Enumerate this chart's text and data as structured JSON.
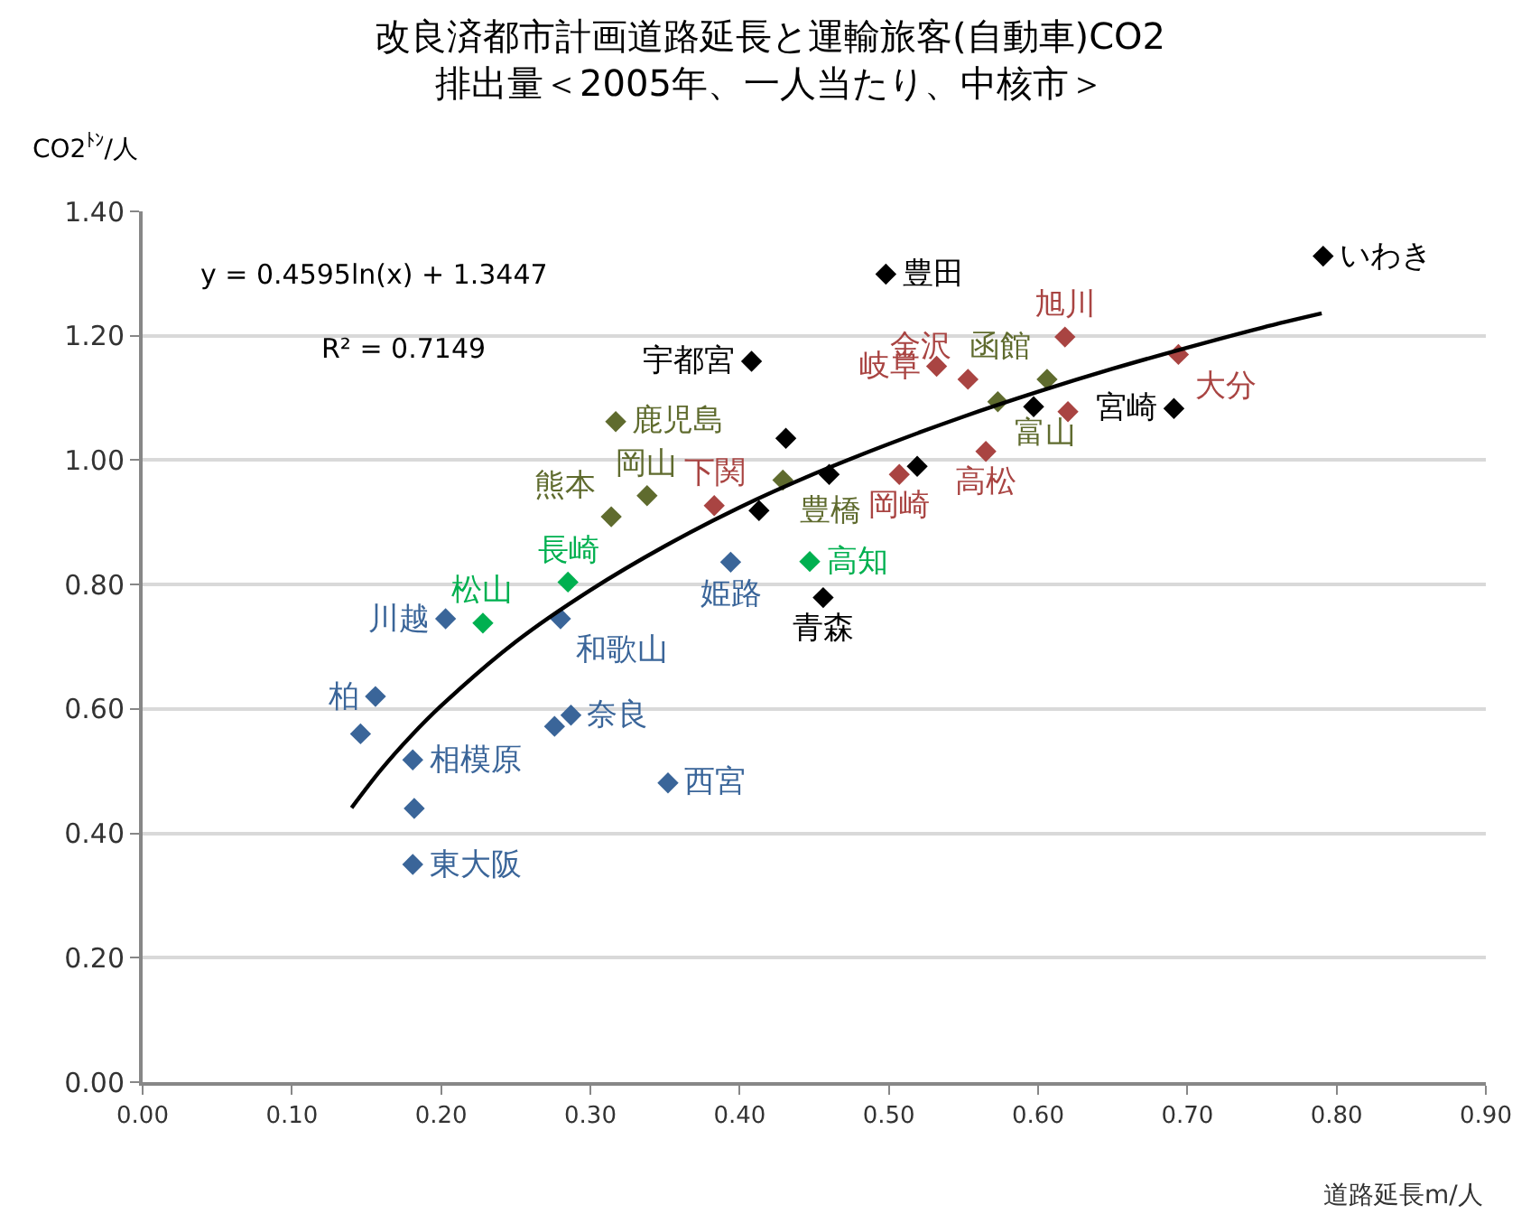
{
  "chart_data": {
    "type": "scatter",
    "title": "改良済都市計画道路延長と運輸旅客(自動車)CO2\n排出量＜2005年、一人当たり、中核市＞",
    "xlabel": "道路延長m/人",
    "ylabel": "CO2$^{ﾄﾝ}$/人",
    "xlim": [
      0,
      0.9
    ],
    "xticks": [
      {
        "value": 0,
        "label": "0.00"
      },
      {
        "value": 0.1,
        "label": "0.10"
      },
      {
        "value": 0.2,
        "label": "0.20"
      },
      {
        "value": 0.3,
        "label": "0.30"
      },
      {
        "value": 0.4,
        "label": "0.40"
      },
      {
        "value": 0.5,
        "label": "0.50"
      },
      {
        "value": 0.6,
        "label": "0.60"
      },
      {
        "value": 0.7,
        "label": "0.70"
      },
      {
        "value": 0.8,
        "label": "0.80"
      },
      {
        "value": 0.9,
        "label": "0.90"
      }
    ],
    "ylim": [
      0,
      1.4
    ],
    "yticks": [
      {
        "value": 0,
        "label": "0.00"
      },
      {
        "value": 0.2,
        "label": "0.20"
      },
      {
        "value": 0.4,
        "label": "0.40"
      },
      {
        "value": 0.6,
        "label": "0.60"
      },
      {
        "value": 0.8,
        "label": "0.80"
      },
      {
        "value": 1.0,
        "label": "1.00"
      },
      {
        "value": 1.2,
        "label": "1.20"
      },
      {
        "value": 1.4,
        "label": "1.40"
      }
    ],
    "grid": "y",
    "marker": "diamond",
    "series": [
      {
        "color": "#3a6599",
        "x": [
          0.156,
          0.146,
          0.181,
          0.182,
          0.181,
          0.203,
          0.28,
          0.287,
          0.276,
          0.352,
          0.394
        ],
        "values": [
          0.62,
          0.56,
          0.518,
          0.44,
          0.35,
          0.745,
          0.745,
          0.59,
          0.572,
          0.481,
          0.836
        ]
      },
      {
        "color": "#00b050",
        "x": [
          0.285,
          0.228,
          0.447
        ],
        "values": [
          0.804,
          0.738,
          0.837
        ]
      },
      {
        "color": "#5f6b2e",
        "x": [
          0.317,
          0.338,
          0.314,
          0.429,
          0.573,
          0.606
        ],
        "values": [
          1.062,
          0.943,
          0.909,
          0.968,
          1.094,
          1.13
        ]
      },
      {
        "color": "#a94442",
        "x": [
          0.383,
          0.507,
          0.565,
          0.532,
          0.553,
          0.618,
          0.62,
          0.694
        ],
        "values": [
          0.927,
          0.977,
          1.014,
          1.151,
          1.13,
          1.198,
          1.078,
          1.17
        ]
      },
      {
        "color": "#000000",
        "x": [
          0.498,
          0.408,
          0.431,
          0.46,
          0.413,
          0.519,
          0.597,
          0.691,
          0.791,
          0.456
        ],
        "values": [
          1.299,
          1.159,
          1.035,
          0.977,
          0.919,
          0.99,
          1.086,
          1.083,
          1.328,
          0.779
        ]
      },
      {
        "type": "line",
        "color": "#000000",
        "marker": "none",
        "x": [
          0.14,
          0.16,
          0.18,
          0.2,
          0.25,
          0.3,
          0.35,
          0.4,
          0.45,
          0.5,
          0.55,
          0.6,
          0.65,
          0.7,
          0.75,
          0.79
        ],
        "values": [
          0.441,
          0.503,
          0.557,
          0.605,
          0.708,
          0.791,
          0.862,
          0.924,
          0.978,
          1.026,
          1.07,
          1.11,
          1.147,
          1.181,
          1.213,
          1.236
        ]
      }
    ],
    "annotations": [
      "y = 0.4595ln(x) + 1.3447",
      "R² = 0.7149",
      {
        "text": "柏",
        "x": 0.156,
        "y": 0.62
      },
      {
        "text": "相模原",
        "x": 0.181,
        "y": 0.518
      },
      {
        "text": "東大阪",
        "x": 0.181,
        "y": 0.35
      },
      {
        "text": "川越",
        "x": 0.203,
        "y": 0.745
      },
      {
        "text": "和歌山",
        "x": 0.28,
        "y": 0.745
      },
      {
        "text": "奈良",
        "x": 0.287,
        "y": 0.59
      },
      {
        "text": "西宮",
        "x": 0.352,
        "y": 0.481
      },
      {
        "text": "姫路",
        "x": 0.394,
        "y": 0.836
      },
      {
        "text": "長崎",
        "x": 0.285,
        "y": 0.804
      },
      {
        "text": "松山",
        "x": 0.228,
        "y": 0.738
      },
      {
        "text": "高知",
        "x": 0.447,
        "y": 0.837
      },
      {
        "text": "鹿児島",
        "x": 0.317,
        "y": 1.062
      },
      {
        "text": "岡山",
        "x": 0.338,
        "y": 0.943
      },
      {
        "text": "熊本",
        "x": 0.314,
        "y": 0.909
      },
      {
        "text": "豊橋",
        "x": 0.429,
        "y": 0.968
      },
      {
        "text": "富山",
        "x": 0.573,
        "y": 1.094
      },
      {
        "text": "函館",
        "x": 0.606,
        "y": 1.13
      },
      {
        "text": "下関",
        "x": 0.383,
        "y": 0.927
      },
      {
        "text": "岡崎",
        "x": 0.507,
        "y": 0.977
      },
      {
        "text": "高松",
        "x": 0.565,
        "y": 1.014
      },
      {
        "text": "岐阜",
        "x": 0.532,
        "y": 1.151
      },
      {
        "text": "金沢",
        "x": 0.553,
        "y": 1.13
      },
      {
        "text": "旭川",
        "x": 0.618,
        "y": 1.198
      },
      {
        "text": "大分",
        "x": 0.694,
        "y": 1.17
      },
      {
        "text": "豊田",
        "x": 0.498,
        "y": 1.299
      },
      {
        "text": "宇都宮",
        "x": 0.408,
        "y": 1.159
      },
      {
        "text": "宮崎",
        "x": 0.691,
        "y": 1.083
      },
      {
        "text": "いわき",
        "x": 0.791,
        "y": 1.328
      },
      {
        "text": "青森",
        "x": 0.456,
        "y": 0.779
      }
    ]
  }
}
